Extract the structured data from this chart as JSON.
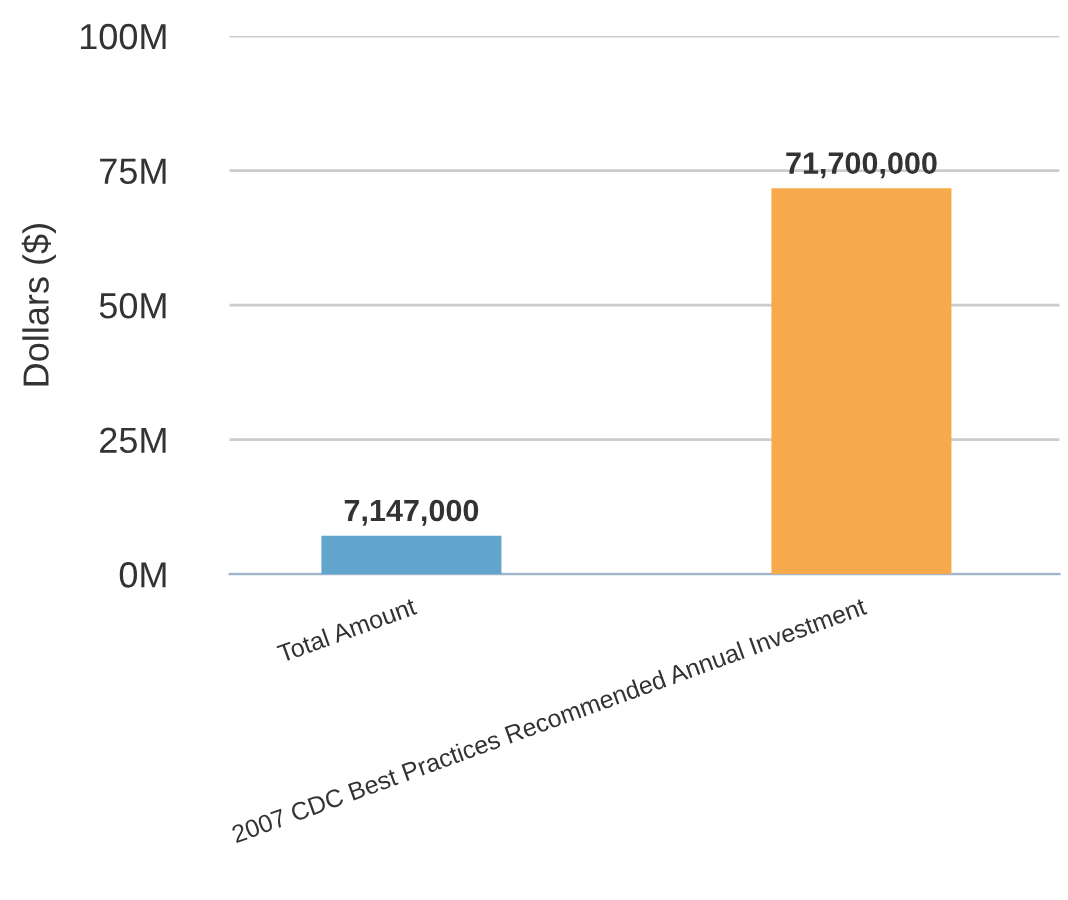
{
  "chart_data": {
    "type": "bar",
    "ylabel": "Dollars ($)",
    "categories": [
      "Total Amount",
      "2007 CDC Best Practices Recommended Annual Investment"
    ],
    "values": [
      7147000,
      71700000
    ],
    "colors": [
      "#62a5cc",
      "#f7aa4b"
    ],
    "value_labels": [
      "7,147,000",
      "71,700,000"
    ],
    "ylim": [
      0,
      100000000
    ],
    "yticks": [
      {
        "value": 0,
        "label": "0M"
      },
      {
        "value": 25000000,
        "label": "25M"
      },
      {
        "value": 50000000,
        "label": "50M"
      },
      {
        "value": 75000000,
        "label": "75M"
      },
      {
        "value": 100000000,
        "label": "100M"
      }
    ],
    "grid": "y",
    "legend": false
  }
}
